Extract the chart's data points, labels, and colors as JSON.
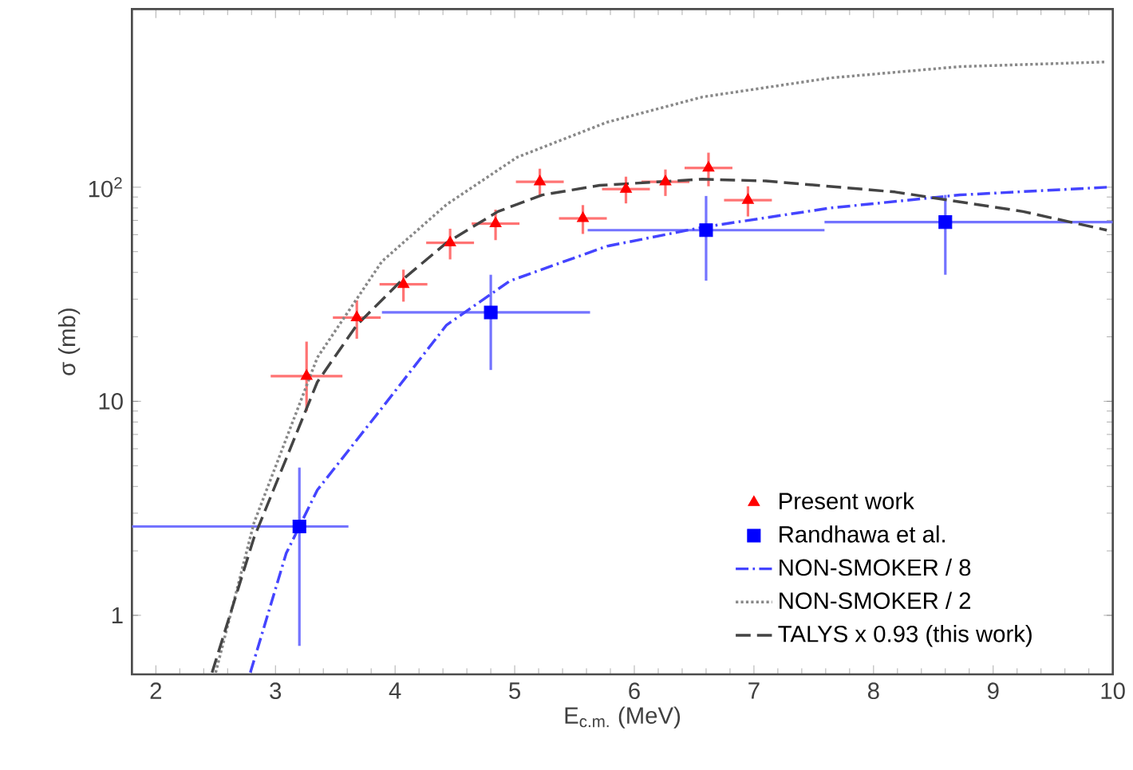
{
  "chart_data": {
    "type": "line",
    "xlabel": "E$_{c.m.}$ (MeV)",
    "ylabel": "σ (mb)",
    "log": "y",
    "legend": "bottom right",
    "xlim": [
      1.8,
      10
    ],
    "ylim": [
      0.53,
      680
    ],
    "xticks": [
      2,
      3,
      4,
      5,
      6,
      7,
      8,
      9,
      10
    ],
    "yticks": [
      1,
      10,
      {
        "value": 100,
        "label": "10$^{2}$"
      }
    ],
    "series": [
      {
        "name": "Present work",
        "type": "scatter",
        "marker": "triangle",
        "color": "#ff0000",
        "x": [
          3.26,
          3.68,
          4.07,
          4.46,
          4.84,
          5.21,
          5.57,
          5.93,
          6.26,
          6.62,
          6.95
        ],
        "values": [
          13.1,
          24.6,
          35.2,
          55,
          67.6,
          106,
          71.5,
          98,
          106,
          123,
          87
        ],
        "errors": [
          [
            9,
            19
          ],
          5,
          6,
          9,
          11,
          16,
          11,
          14,
          15,
          22,
          14
        ],
        "xerrors": [
          0.3,
          0.2,
          0.2,
          0.2,
          0.2,
          0.2,
          0.2,
          0.2,
          0.2,
          0.2,
          0.2
        ]
      },
      {
        "name": "Randhawa et al.",
        "type": "scatter",
        "marker": "square",
        "color": "#0000ff",
        "x": [
          3.2,
          4.8,
          6.6,
          8.6
        ],
        "values": [
          2.6,
          26,
          63,
          68.7
        ],
        "errors": [
          [
            0.72,
            4.9
          ],
          [
            14,
            39
          ],
          [
            36.6,
            91
          ],
          [
            39,
            92
          ]
        ],
        "xerrors": [
          [
            1.8,
            3.61
          ],
          [
            3.89,
            5.63
          ],
          [
            5.61,
            7.59
          ],
          [
            7.59,
            10
          ]
        ]
      },
      {
        "name": "NON-SMOKER / 8",
        "line_style": "dashdot",
        "color": "#4444ff",
        "x": [
          2.79,
          3.09,
          3.35,
          3.89,
          4.43,
          4.96,
          5.77,
          6.57,
          7.64,
          8.72,
          9.95
        ],
        "values": [
          0.54,
          1.95,
          3.85,
          9.3,
          22.7,
          36.5,
          53,
          65,
          80,
          92,
          100
        ]
      },
      {
        "name": "NON-SMOKER / 2",
        "line_style": "dotted",
        "color": "#888888",
        "x": [
          2.5,
          2.82,
          3.35,
          3.89,
          4.43,
          5.02,
          5.77,
          6.57,
          7.64,
          8.72,
          9.95
        ],
        "values": [
          0.54,
          2.7,
          16,
          45,
          83,
          138,
          201,
          264,
          324,
          366,
          385
        ]
      },
      {
        "name": "TALYS x 0.93 (this work)",
        "line_style": "dashed",
        "color": "#444444",
        "x": [
          2.47,
          2.82,
          3.09,
          3.35,
          3.68,
          4.05,
          4.43,
          4.86,
          5.23,
          5.71,
          6.57,
          7.1,
          8.18,
          9.25,
          9.95
        ],
        "values": [
          0.54,
          2.3,
          5.4,
          12.3,
          22.7,
          36.5,
          55,
          77,
          92,
          102,
          109,
          107,
          95,
          77,
          63
        ]
      }
    ]
  }
}
